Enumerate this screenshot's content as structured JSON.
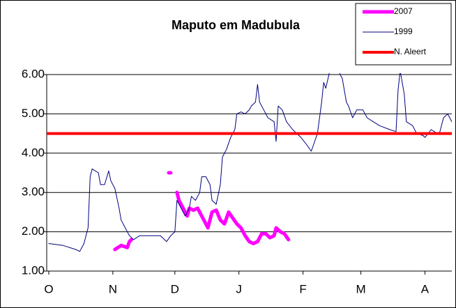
{
  "chart_data": {
    "type": "line",
    "title": "Maputo em Madubula",
    "xlim": [
      -1,
      195
    ],
    "xticks": [
      {
        "value": 0,
        "label": "O"
      },
      {
        "value": 31,
        "label": "N"
      },
      {
        "value": 61,
        "label": "D"
      },
      {
        "value": 92,
        "label": "J"
      },
      {
        "value": 123,
        "label": "F"
      },
      {
        "value": 151,
        "label": "M"
      },
      {
        "value": 182,
        "label": "A"
      }
    ],
    "ylim": [
      1,
      6
    ],
    "yticks": [
      {
        "value": 1,
        "label": "1.00"
      },
      {
        "value": 2,
        "label": "2.00"
      },
      {
        "value": 3,
        "label": "3.00"
      },
      {
        "value": 4,
        "label": "4.00"
      },
      {
        "value": 5,
        "label": "5.00"
      },
      {
        "value": 6,
        "label": "6.00"
      }
    ],
    "grid": true,
    "legend": "top-right",
    "series": [
      {
        "name": "2007",
        "color": "#ff00ff",
        "width": 5,
        "x": [
          32,
          35,
          38,
          39,
          40,
          58,
          59,
          62,
          63,
          65,
          67,
          68,
          70,
          72,
          74,
          76,
          77,
          79,
          81,
          83,
          85,
          87,
          89,
          91,
          93,
          95,
          97,
          99,
          101,
          103,
          105,
          107,
          109,
          110,
          112,
          114,
          116
        ],
        "values": [
          1.55,
          1.65,
          1.6,
          1.75,
          1.8,
          3.5,
          3.5,
          3.0,
          2.8,
          2.6,
          2.4,
          2.6,
          2.55,
          2.6,
          2.4,
          2.2,
          2.1,
          2.5,
          2.55,
          2.3,
          2.2,
          2.5,
          2.35,
          2.2,
          2.1,
          1.9,
          1.75,
          1.7,
          1.75,
          1.95,
          1.95,
          1.85,
          1.9,
          2.1,
          2.0,
          1.95,
          1.8
        ],
        "breaks_after": [
          4,
          6
        ]
      },
      {
        "name": "1999",
        "color": "#000080",
        "width": 1,
        "x": [
          0,
          7,
          13,
          15,
          17,
          19,
          20,
          21,
          24,
          25,
          27,
          29,
          30,
          32,
          34,
          35,
          37,
          39,
          41,
          44,
          49,
          54,
          56,
          57,
          59,
          61,
          62,
          64,
          66,
          68,
          69,
          71,
          73,
          74,
          76,
          78,
          79,
          81,
          83,
          84,
          86,
          88,
          90,
          91,
          93,
          95,
          97,
          98,
          100,
          101,
          102,
          104,
          106,
          109,
          110,
          111,
          113,
          115,
          118,
          122,
          125,
          127,
          128,
          130,
          132,
          133,
          134,
          136,
          139,
          140,
          142,
          144,
          145,
          147,
          149,
          152,
          154,
          157,
          160,
          165,
          168,
          169,
          170,
          172,
          173,
          176,
          178,
          181,
          182,
          185,
          188,
          189,
          191,
          193,
          194,
          195
        ],
        "values": [
          1.7,
          1.65,
          1.55,
          1.5,
          1.7,
          2.1,
          3.4,
          3.6,
          3.5,
          3.2,
          3.2,
          3.55,
          3.3,
          3.1,
          2.6,
          2.3,
          2.1,
          1.9,
          1.8,
          1.9,
          1.9,
          1.9,
          1.8,
          1.75,
          1.9,
          2.0,
          2.8,
          2.6,
          2.4,
          2.6,
          2.9,
          2.8,
          3.0,
          3.4,
          3.4,
          3.2,
          2.8,
          2.7,
          3.2,
          3.9,
          4.1,
          4.4,
          4.6,
          5.0,
          5.05,
          5.0,
          5.1,
          5.2,
          5.3,
          5.75,
          5.3,
          5.1,
          4.9,
          4.8,
          4.3,
          5.2,
          5.1,
          4.8,
          4.6,
          4.4,
          4.2,
          4.05,
          4.2,
          4.5,
          5.3,
          5.8,
          5.65,
          6.1,
          6.05,
          6.1,
          5.9,
          5.3,
          5.2,
          4.9,
          5.1,
          5.1,
          4.9,
          4.8,
          4.7,
          4.6,
          4.55,
          5.6,
          6.1,
          5.5,
          4.8,
          4.7,
          4.5,
          4.45,
          4.4,
          4.6,
          4.5,
          4.5,
          4.9,
          5.0,
          4.9,
          4.8
        ]
      },
      {
        "name": "N. Aleert",
        "color": "#ff0000",
        "width": 4,
        "x": [
          -1,
          195
        ],
        "values": [
          4.5,
          4.5
        ]
      }
    ]
  }
}
